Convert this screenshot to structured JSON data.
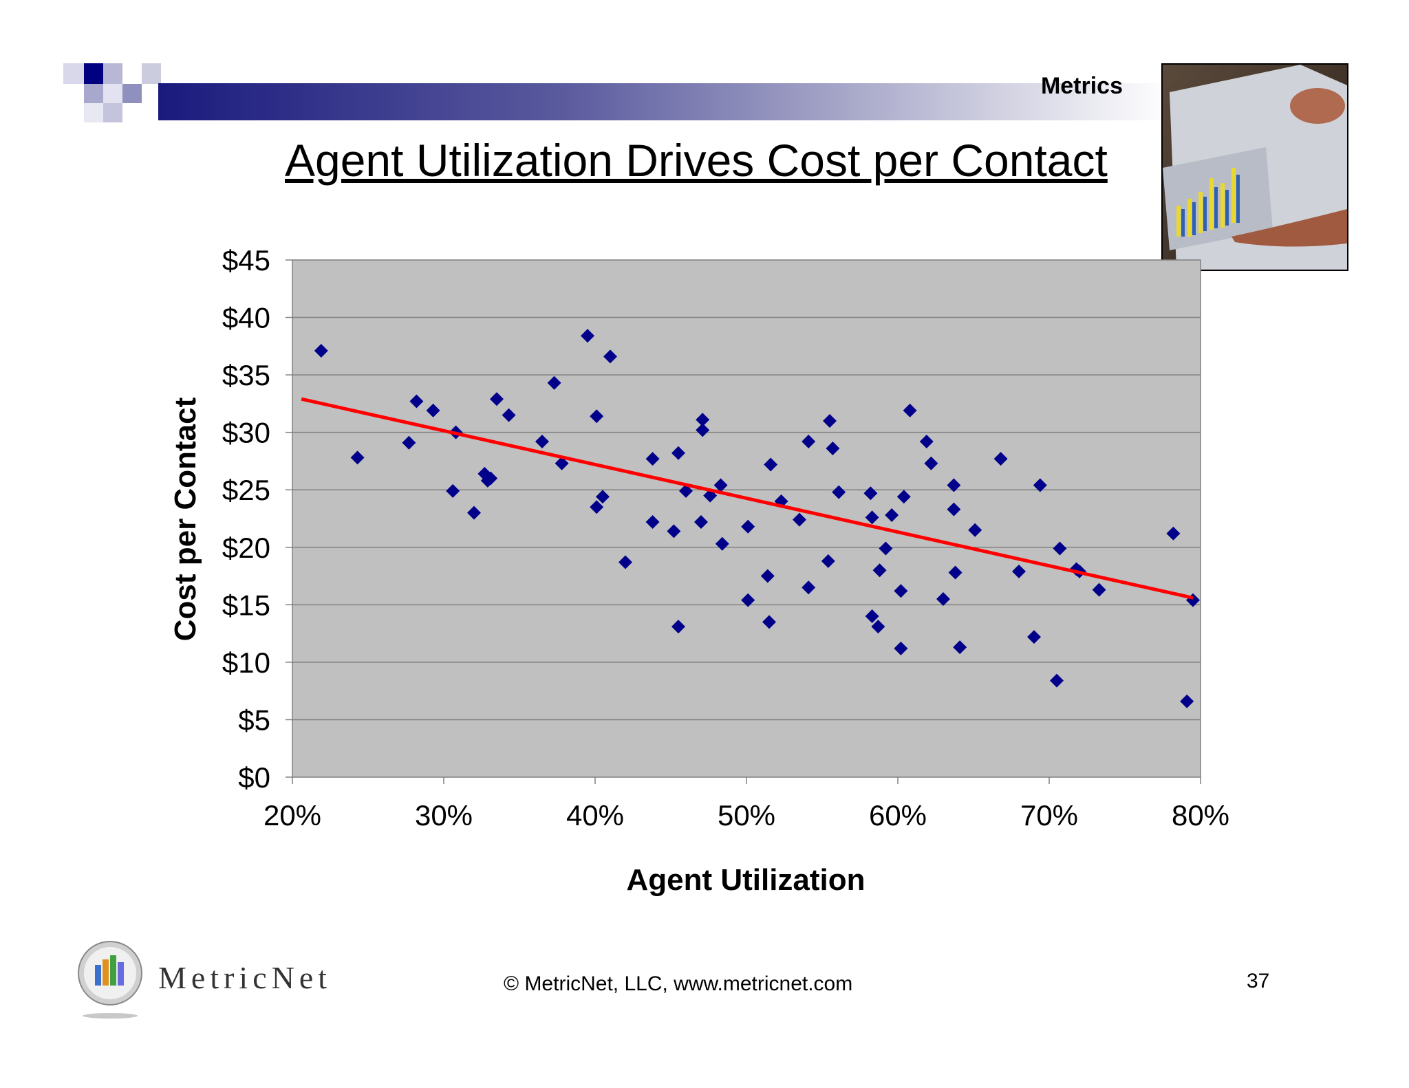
{
  "header": {
    "section": "Metrics"
  },
  "slide": {
    "title": "Agent Utilization Drives Cost per Contact"
  },
  "chart_data": {
    "type": "scatter",
    "xlabel": "Agent Utilization",
    "ylabel": "Cost per Contact",
    "xlim": [
      0.2,
      0.8
    ],
    "ylim": [
      0,
      45
    ],
    "x_ticks": [
      "20%",
      "30%",
      "40%",
      "50%",
      "60%",
      "70%",
      "80%"
    ],
    "y_ticks": [
      "$0",
      "$5",
      "$10",
      "$15",
      "$20",
      "$25",
      "$30",
      "$35",
      "$40",
      "$45"
    ],
    "gridlines": "horizontal",
    "series": [
      {
        "name": "Cost per Contact",
        "marker": "diamond",
        "color": "#00008b",
        "points": [
          [
            0.219,
            37.1
          ],
          [
            0.243,
            27.8
          ],
          [
            0.277,
            29.1
          ],
          [
            0.282,
            32.7
          ],
          [
            0.293,
            31.9
          ],
          [
            0.306,
            24.9
          ],
          [
            0.308,
            30.0
          ],
          [
            0.32,
            23.0
          ],
          [
            0.327,
            26.4
          ],
          [
            0.329,
            25.8
          ],
          [
            0.331,
            26.0
          ],
          [
            0.335,
            32.9
          ],
          [
            0.343,
            31.5
          ],
          [
            0.365,
            29.2
          ],
          [
            0.373,
            34.3
          ],
          [
            0.378,
            27.3
          ],
          [
            0.395,
            38.4
          ],
          [
            0.401,
            31.4
          ],
          [
            0.401,
            23.5
          ],
          [
            0.405,
            24.4
          ],
          [
            0.41,
            36.6
          ],
          [
            0.42,
            18.7
          ],
          [
            0.438,
            27.7
          ],
          [
            0.438,
            22.2
          ],
          [
            0.452,
            21.4
          ],
          [
            0.455,
            28.2
          ],
          [
            0.455,
            13.1
          ],
          [
            0.46,
            24.9
          ],
          [
            0.47,
            22.2
          ],
          [
            0.471,
            30.2
          ],
          [
            0.471,
            31.1
          ],
          [
            0.476,
            24.5
          ],
          [
            0.483,
            25.4
          ],
          [
            0.484,
            20.3
          ],
          [
            0.501,
            21.8
          ],
          [
            0.501,
            15.4
          ],
          [
            0.514,
            17.5
          ],
          [
            0.515,
            13.5
          ],
          [
            0.516,
            27.2
          ],
          [
            0.523,
            24.0
          ],
          [
            0.535,
            22.4
          ],
          [
            0.541,
            29.2
          ],
          [
            0.541,
            16.5
          ],
          [
            0.554,
            18.8
          ],
          [
            0.555,
            31.0
          ],
          [
            0.557,
            28.6
          ],
          [
            0.561,
            24.8
          ],
          [
            0.582,
            24.7
          ],
          [
            0.583,
            22.6
          ],
          [
            0.583,
            14.0
          ],
          [
            0.587,
            13.1
          ],
          [
            0.588,
            18.0
          ],
          [
            0.592,
            19.9
          ],
          [
            0.596,
            22.8
          ],
          [
            0.602,
            16.2
          ],
          [
            0.602,
            11.2
          ],
          [
            0.604,
            24.4
          ],
          [
            0.608,
            31.9
          ],
          [
            0.619,
            29.2
          ],
          [
            0.622,
            27.3
          ],
          [
            0.63,
            15.5
          ],
          [
            0.637,
            25.4
          ],
          [
            0.637,
            23.3
          ],
          [
            0.638,
            17.8
          ],
          [
            0.641,
            11.3
          ],
          [
            0.651,
            21.5
          ],
          [
            0.668,
            27.7
          ],
          [
            0.68,
            17.9
          ],
          [
            0.69,
            12.2
          ],
          [
            0.694,
            25.4
          ],
          [
            0.705,
            8.4
          ],
          [
            0.707,
            19.9
          ],
          [
            0.718,
            18.1
          ],
          [
            0.72,
            17.9
          ],
          [
            0.733,
            16.3
          ],
          [
            0.782,
            21.2
          ],
          [
            0.791,
            6.6
          ],
          [
            0.795,
            15.4
          ]
        ]
      },
      {
        "name": "Trend",
        "type": "line",
        "color": "#ff0000",
        "points": [
          [
            0.206,
            32.9
          ],
          [
            0.795,
            15.6
          ]
        ]
      }
    ]
  },
  "footer": {
    "logo_text": "MetricNet",
    "copyright": "© MetricNet, LLC, www.metricnet.com",
    "page_number": "37"
  }
}
